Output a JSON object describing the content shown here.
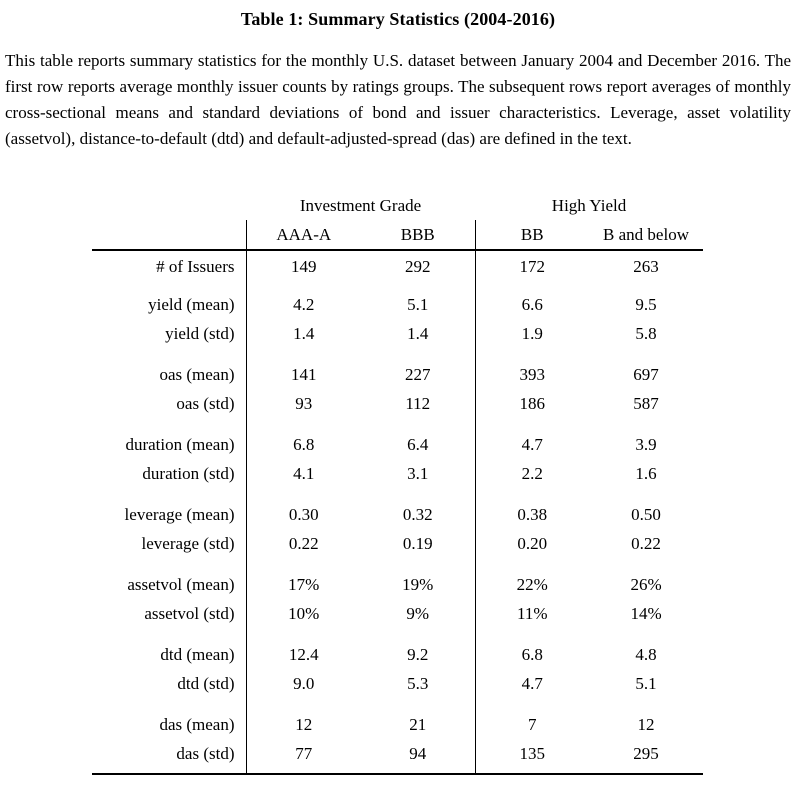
{
  "title": "Table 1: Summary Statistics (2004-2016)",
  "description": "This table reports summary statistics for the monthly U.S. dataset between January 2004 and December 2016. The first row reports average monthly issuer counts by ratings groups.  The subsequent rows report averages of monthly cross-sectional means and standard deviations of bond and issuer characteristics.  Leverage, asset volatility (assetvol), distance-to-default (dtd) and default-adjusted-spread (das) are defined in the text.",
  "colors": {
    "text": "#000000",
    "background": "#ffffff",
    "rule": "#000000"
  },
  "table": {
    "group_headers": [
      {
        "label": "Investment Grade",
        "span": 2
      },
      {
        "label": "High Yield",
        "span": 2
      }
    ],
    "col_headers": [
      "AAA-A",
      "BBB",
      "BB",
      "B and below"
    ],
    "row_groups": [
      {
        "rows": [
          {
            "label": "# of Issuers",
            "values": [
              "149",
              "292",
              "172",
              "263"
            ]
          }
        ]
      },
      {
        "rows": [
          {
            "label": "yield (mean)",
            "values": [
              "4.2",
              "5.1",
              "6.6",
              "9.5"
            ]
          },
          {
            "label": "yield (std)",
            "values": [
              "1.4",
              "1.4",
              "1.9",
              "5.8"
            ]
          }
        ]
      },
      {
        "rows": [
          {
            "label": "oas (mean)",
            "values": [
              "141",
              "227",
              "393",
              "697"
            ]
          },
          {
            "label": "oas (std)",
            "values": [
              "93",
              "112",
              "186",
              "587"
            ]
          }
        ]
      },
      {
        "rows": [
          {
            "label": "duration (mean)",
            "values": [
              "6.8",
              "6.4",
              "4.7",
              "3.9"
            ]
          },
          {
            "label": "duration (std)",
            "values": [
              "4.1",
              "3.1",
              "2.2",
              "1.6"
            ]
          }
        ]
      },
      {
        "rows": [
          {
            "label": "leverage (mean)",
            "values": [
              "0.30",
              "0.32",
              "0.38",
              "0.50"
            ]
          },
          {
            "label": "leverage (std)",
            "values": [
              "0.22",
              "0.19",
              "0.20",
              "0.22"
            ]
          }
        ]
      },
      {
        "rows": [
          {
            "label": "assetvol (mean)",
            "values": [
              "17%",
              "19%",
              "22%",
              "26%"
            ]
          },
          {
            "label": "assetvol (std)",
            "values": [
              "10%",
              "9%",
              "11%",
              "14%"
            ]
          }
        ]
      },
      {
        "rows": [
          {
            "label": "dtd (mean)",
            "values": [
              "12.4",
              "9.2",
              "6.8",
              "4.8"
            ]
          },
          {
            "label": "dtd (std)",
            "values": [
              "9.0",
              "5.3",
              "4.7",
              "5.1"
            ]
          }
        ]
      },
      {
        "rows": [
          {
            "label": "das (mean)",
            "values": [
              "12",
              "21",
              "7",
              "12"
            ]
          },
          {
            "label": "das (std)",
            "values": [
              "77",
              "94",
              "135",
              "295"
            ]
          }
        ]
      }
    ]
  }
}
